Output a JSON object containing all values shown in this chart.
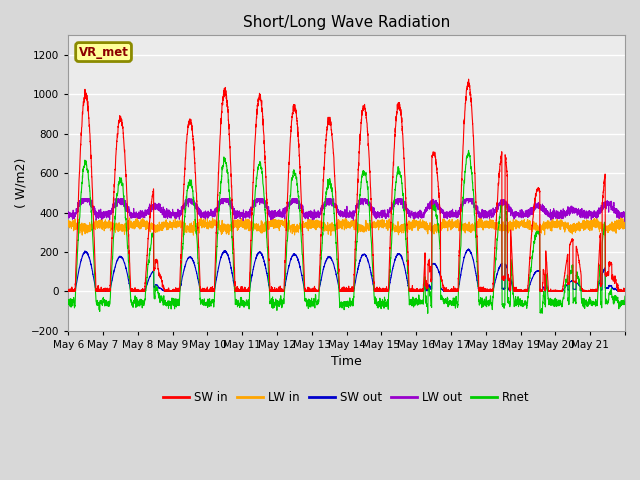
{
  "title": "Short/Long Wave Radiation",
  "xlabel": "Time",
  "ylabel": "( W/m2)",
  "ylim": [
    -200,
    1300
  ],
  "yticks": [
    -200,
    0,
    200,
    400,
    600,
    800,
    1000,
    1200
  ],
  "legend_label": "VR_met",
  "series_labels": [
    "SW in",
    "LW in",
    "SW out",
    "LW out",
    "Rnet"
  ],
  "series_colors": [
    "#FF0000",
    "#FFA500",
    "#0000CC",
    "#9900CC",
    "#00CC00"
  ],
  "n_days": 16,
  "day_labels": [
    "May 6",
    "May 7",
    "May 8",
    "May 9",
    "May 10",
    "May 11",
    "May 12",
    "May 13",
    "May 14",
    "May 15",
    "May 16",
    "May 17",
    "May 18",
    "May 19",
    "May 20",
    "May 21"
  ],
  "bg_color": "#D8D8D8",
  "axes_bg": "#EBEBEB",
  "grid_color": "#FFFFFF",
  "box_edge_color": "#8B8B00",
  "box_face_color": "#FFFF99",
  "box_text_color": "#8B0000",
  "peaks_sw": [
    1000,
    880,
    530,
    870,
    1020,
    990,
    940,
    870,
    940,
    950,
    700,
    1060,
    720,
    520,
    260,
    640
  ],
  "figsize": [
    6.4,
    4.8
  ],
  "dpi": 100
}
